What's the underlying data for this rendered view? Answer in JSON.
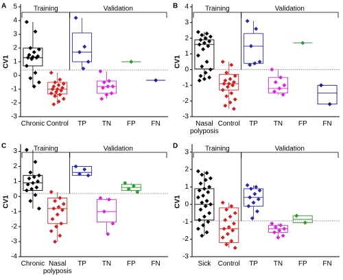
{
  "chart_data": [
    {
      "type": "box",
      "panel": "A",
      "ylabel": "CV1",
      "ylim": [
        -3,
        5
      ],
      "yticks": [
        -3,
        -2,
        -1,
        0,
        1,
        2,
        3,
        4,
        5
      ],
      "threshold": 0.4,
      "groups": [
        {
          "label": "Training",
          "count": 2
        },
        {
          "label": "Validation",
          "count": 4
        }
      ],
      "categories": [
        "Chronic",
        "Control",
        "TP",
        "TN",
        "FP",
        "FN"
      ],
      "series": [
        {
          "color": "#000000",
          "box": [
            -0.8,
            0.7,
            1.3,
            2.0,
            3.9
          ],
          "points": [
            3.9,
            3.2,
            2.0,
            1.9,
            1.7,
            1.5,
            1.4,
            1.35,
            1.3,
            1.3,
            1.2,
            0.7,
            0.2,
            -0.2,
            -0.5,
            -0.8
          ]
        },
        {
          "color": "#d42020",
          "box": [
            -2.1,
            -1.35,
            -1.0,
            -0.5,
            0.2
          ],
          "points": [
            0.2,
            -0.3,
            -0.5,
            -0.6,
            -0.7,
            -0.8,
            -0.9,
            -1.0,
            -1.0,
            -1.1,
            -1.2,
            -1.3,
            -1.4,
            -1.5,
            -1.7,
            -1.9,
            -2.1
          ]
        },
        {
          "color": "#2a2ab0",
          "box": [
            0.5,
            1.0,
            1.7,
            3.1,
            4.2
          ],
          "points": [
            4.2,
            2.1,
            1.7,
            1.0,
            0.5
          ]
        },
        {
          "color": "#e020e0",
          "box": [
            -1.7,
            -1.3,
            -0.8,
            -0.4,
            0.3
          ],
          "points": [
            0.3,
            -0.4,
            -0.5,
            -0.8,
            -0.8,
            -0.9,
            -1.3,
            -1.4,
            -1.7
          ]
        },
        {
          "color": "#2a9a2a",
          "box": [
            1.0,
            1.0,
            1.0,
            1.0,
            1.0
          ],
          "points": [
            1.0
          ]
        },
        {
          "color": "#1a1a80",
          "box": [
            -0.35,
            -0.35,
            -0.35,
            -0.35,
            -0.35
          ],
          "points": [
            -0.35
          ]
        }
      ]
    },
    {
      "type": "box",
      "panel": "B",
      "ylabel": "CV1",
      "ylim": [
        -3,
        4
      ],
      "yticks": [
        -3,
        -2,
        -1,
        0,
        1,
        2,
        3,
        4
      ],
      "threshold": 0,
      "groups": [
        {
          "label": "Training",
          "count": 2
        },
        {
          "label": "Validation",
          "count": 4
        }
      ],
      "categories": [
        "Nasal polyposis",
        "Control",
        "TP",
        "TN",
        "FP",
        "FN"
      ],
      "series": [
        {
          "color": "#000000",
          "box": [
            -0.7,
            0.05,
            1.6,
            1.9,
            2.4
          ],
          "points": [
            2.4,
            2.3,
            2.2,
            2.1,
            2.0,
            1.9,
            1.8,
            1.7,
            1.6,
            1.5,
            1.3,
            0.9,
            0.5,
            0.2,
            0,
            -0.2,
            -0.4,
            -0.5,
            -0.6,
            -0.7
          ]
        },
        {
          "color": "#d42020",
          "box": [
            -2.5,
            -1.3,
            -0.9,
            -0.3,
            0.5
          ],
          "points": [
            0.5,
            0.3,
            -0.2,
            -0.4,
            -0.6,
            -0.7,
            -0.8,
            -0.9,
            -0.9,
            -1.0,
            -1.1,
            -1.3,
            -1.5,
            -1.7,
            -1.9,
            -2.1,
            -2.3,
            -2.5
          ]
        },
        {
          "color": "#2a2ab0",
          "box": [
            0.3,
            0.4,
            1.5,
            2.3,
            3.1
          ],
          "points": [
            3.1,
            2.6,
            1.5,
            0.5,
            0.4,
            0.3
          ]
        },
        {
          "color": "#e020e0",
          "box": [
            -1.6,
            -1.5,
            -1.2,
            -0.5,
            0
          ],
          "points": [
            0,
            -0.5,
            -0.8,
            -1.0,
            -1.2,
            -1.4,
            -1.6
          ]
        },
        {
          "color": "#2a9a2a",
          "box": [
            1.7,
            1.7,
            1.7,
            1.7,
            1.7
          ],
          "points": [
            1.7
          ]
        },
        {
          "color": "#1a1a80",
          "box": [
            -2.2,
            -2.2,
            -1.5,
            -1.0,
            -1.0
          ],
          "points": [
            -1.0,
            -2.2
          ]
        }
      ]
    },
    {
      "type": "box",
      "panel": "C",
      "ylabel": "CV1",
      "ylim": [
        -4,
        3.3
      ],
      "yticks": [
        -4,
        -3,
        -2,
        -1,
        0,
        1,
        2,
        3
      ],
      "threshold": 0.2,
      "groups": [
        {
          "label": "Training",
          "count": 2
        },
        {
          "label": "Validation",
          "count": 4
        }
      ],
      "categories": [
        "Chronic",
        "Nasal polyposis",
        "TP",
        "TN",
        "FP",
        "FN"
      ],
      "series": [
        {
          "color": "#000000",
          "box": [
            -0.8,
            0.4,
            0.9,
            1.4,
            3.1
          ],
          "points": [
            3.1,
            2.3,
            1.6,
            1.4,
            1.3,
            1.2,
            1.0,
            0.9,
            0.8,
            0.6,
            0.5,
            0.4,
            0.1,
            -0.3,
            -0.8
          ]
        },
        {
          "color": "#d42020",
          "box": [
            -3.0,
            -1.8,
            -0.8,
            -0.1,
            0.3
          ],
          "points": [
            0.3,
            -0.1,
            -0.3,
            -0.5,
            -0.7,
            -0.8,
            -0.9,
            -1.2,
            -1.5,
            -1.8,
            -2.0,
            -2.3,
            -2.6,
            -3.0
          ]
        },
        {
          "color": "#2a2ab0",
          "box": [
            1.4,
            1.4,
            1.6,
            2.0,
            2.0
          ],
          "points": [
            2.0,
            1.8,
            1.5,
            1.4
          ]
        },
        {
          "color": "#e020e0",
          "box": [
            -2.5,
            -1.7,
            -1.0,
            -0.2,
            -0.1
          ],
          "points": [
            -0.1,
            -0.2,
            -1.0,
            -1.8,
            -2.5
          ]
        },
        {
          "color": "#2a9a2a",
          "box": [
            0.3,
            0.4,
            0.6,
            0.8,
            0.9
          ],
          "points": [
            0.9,
            0.7,
            0.5,
            0.3
          ]
        },
        {
          "color": "#1a1a80",
          "box": null,
          "points": []
        }
      ]
    },
    {
      "type": "box",
      "panel": "D",
      "ylabel": "CV1",
      "ylim": [
        -3,
        3.3
      ],
      "yticks": [
        -3,
        -2,
        -1,
        0,
        1,
        2,
        3
      ],
      "threshold": -0.95,
      "groups": [
        {
          "label": "Training",
          "count": 2
        },
        {
          "label": "Validation",
          "count": 4
        }
      ],
      "categories": [
        "Sick",
        "Control",
        "TP",
        "TN",
        "FP",
        "FN"
      ],
      "series": [
        {
          "color": "#000000",
          "box": [
            -1.8,
            -0.9,
            0.0,
            0.9,
            1.9
          ],
          "points": [
            1.9,
            1.8,
            1.7,
            1.5,
            1.4,
            1.2,
            1.0,
            0.9,
            0.8,
            0.7,
            0.5,
            0.4,
            0.2,
            0.1,
            0,
            -0.1,
            -0.3,
            -0.5,
            -0.7,
            -0.9,
            -1.0,
            -1.2,
            -1.4,
            -1.6,
            -1.8
          ]
        },
        {
          "color": "#d42020",
          "box": [
            -2.5,
            -2.2,
            -1.4,
            -0.2,
            0.1
          ],
          "points": [
            0.1,
            -0.1,
            -0.3,
            -0.5,
            -0.7,
            -0.9,
            -1.1,
            -1.3,
            -1.4,
            -1.5,
            -1.7,
            -1.9,
            -2.1,
            -2.3,
            -2.5
          ]
        },
        {
          "color": "#2a2ab0",
          "box": [
            -0.8,
            -0.1,
            0.4,
            0.9,
            1.1
          ],
          "points": [
            1.1,
            1.0,
            0.9,
            0.8,
            0.6,
            0.4,
            0.3,
            0.1,
            -0.1,
            -0.4,
            -0.8
          ]
        },
        {
          "color": "#e020e0",
          "box": [
            -1.9,
            -1.6,
            -1.4,
            -1.2,
            -1.1
          ],
          "points": [
            -1.1,
            -1.2,
            -1.3,
            -1.4,
            -1.5,
            -1.6,
            -1.8,
            -1.9
          ]
        },
        {
          "color": "#2a9a2a",
          "box": [
            -1.05,
            -1.05,
            -0.85,
            -0.65,
            -0.65
          ],
          "points": [
            -0.65,
            -1.05
          ]
        },
        {
          "color": "#1a1a80",
          "box": null,
          "points": []
        }
      ]
    }
  ]
}
